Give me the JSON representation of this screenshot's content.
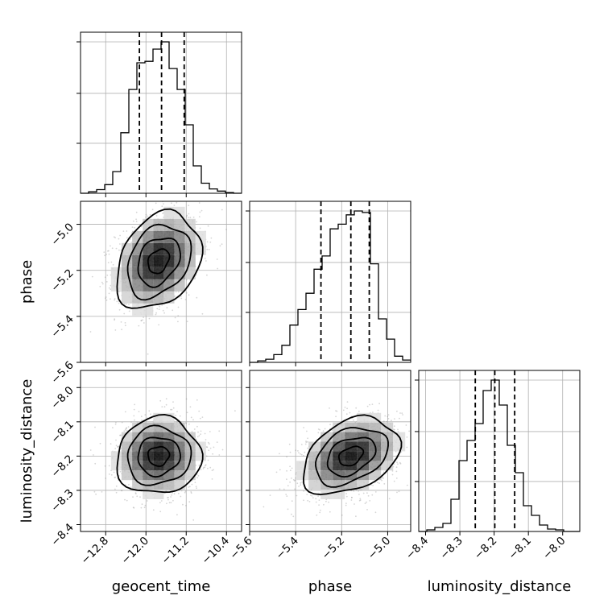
{
  "chart_data": {
    "type": "corner",
    "parameters": [
      "geocent_time",
      "phase",
      "luminosity_distance"
    ],
    "axis_labels": {
      "x": [
        "geocent_time",
        "phase",
        "luminosity_distance"
      ],
      "y": [
        "",
        "phase",
        "luminosity_distance"
      ]
    },
    "ranges": {
      "geocent_time": [
        -13.3,
        -10.1
      ],
      "phase": [
        -5.6,
        -4.9
      ],
      "luminosity_distance": [
        -8.42,
        -7.95
      ]
    },
    "ticks": {
      "geocent_time": {
        "values": [
          -12.8,
          -12.0,
          -11.2,
          -10.4
        ],
        "labels": [
          "−12.8",
          "−12.0",
          "−11.2",
          "−10.4"
        ]
      },
      "phase": {
        "values": [
          -5.6,
          -5.4,
          -5.2,
          -5.0
        ],
        "labels": [
          "−5.6",
          "−5.4",
          "−5.2",
          "−5.0"
        ]
      },
      "luminosity_distance": {
        "values": [
          -8.4,
          -8.3,
          -8.2,
          -8.1,
          -8.0
        ],
        "labels": [
          "−8.4",
          "−8.3",
          "−8.2",
          "−8.1",
          "−8.0"
        ]
      }
    },
    "quantiles": {
      "geocent_time": [
        -12.13,
        -11.69,
        -11.24
      ],
      "phase": [
        -5.29,
        -5.16,
        -5.08
      ],
      "luminosity_distance": [
        -8.255,
        -8.198,
        -8.14
      ]
    },
    "histograms": {
      "geocent_time": {
        "edges": [
          -13.3,
          -13.14,
          -12.98,
          -12.82,
          -12.66,
          -12.5,
          -12.34,
          -12.18,
          -12.02,
          -11.86,
          -11.7,
          -11.54,
          -11.38,
          -11.22,
          -11.06,
          -10.9,
          -10.74,
          -10.58,
          -10.42,
          -10.26,
          -10.1
        ],
        "counts": [
          0,
          2,
          5,
          12,
          30,
          84,
          144,
          181,
          183,
          200,
          210,
          173,
          144,
          95,
          38,
          14,
          6,
          3,
          1,
          0
        ]
      },
      "phase": {
        "edges": [
          -5.6,
          -5.565,
          -5.53,
          -5.495,
          -5.46,
          -5.425,
          -5.39,
          -5.355,
          -5.32,
          -5.285,
          -5.25,
          -5.215,
          -5.18,
          -5.145,
          -5.11,
          -5.075,
          -5.04,
          -5.005,
          -4.97,
          -4.935,
          -4.9
        ],
        "counts": [
          0,
          2,
          4,
          10,
          22,
          48,
          68,
          89,
          120,
          137,
          172,
          178,
          190,
          195,
          193,
          127,
          56,
          30,
          8,
          3
        ]
      },
      "luminosity_distance": {
        "edges": [
          -8.42,
          -8.3965,
          -8.373,
          -8.3495,
          -8.326,
          -8.3025,
          -8.279,
          -8.2555,
          -8.232,
          -8.2085,
          -8.185,
          -8.1615,
          -8.138,
          -8.1145,
          -8.091,
          -8.0675,
          -8.044,
          -8.0205,
          -7.997,
          -7.9735,
          -7.95
        ],
        "counts": [
          0,
          2,
          5,
          10,
          40,
          88,
          113,
          134,
          175,
          188,
          157,
          107,
          73,
          32,
          20,
          8,
          3,
          2,
          0,
          0
        ]
      }
    },
    "samples": {
      "n_shown": 1500,
      "center": [
        -11.75,
        -5.16,
        -8.2
      ],
      "std": [
        0.42,
        0.105,
        0.056
      ],
      "corr": [
        [
          1,
          0.28,
          0.05
        ],
        [
          0.28,
          1,
          0.35
        ],
        [
          0.05,
          0.35,
          1
        ]
      ]
    }
  }
}
